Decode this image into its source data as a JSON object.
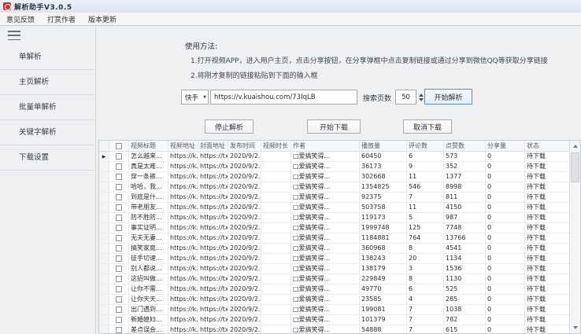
{
  "window": {
    "title": "解析助手V3.0.5"
  },
  "menu": {
    "items": [
      {
        "label": "意见反馈"
      },
      {
        "label": "打赏作者"
      },
      {
        "label": "版本更新"
      }
    ]
  },
  "sidebar": {
    "items": [
      {
        "label": "单解析"
      },
      {
        "label": "主页解析"
      },
      {
        "label": "批量单解析"
      },
      {
        "label": "关键字解析"
      },
      {
        "label": "下载设置"
      }
    ]
  },
  "instructions": {
    "heading": "使用方法:",
    "lines": [
      "1.打开视频APP，进入用户主页，点击分享按钮，在分享弹框中点击复制链接或通过分享到微信QQ等获取分享链接",
      "2.将刚才复制的链接粘贴到下面的输入框"
    ]
  },
  "parse_bar": {
    "platform_selected": "快手",
    "url_value": "https://v.kuaishou.com/73IqLB",
    "pages_label": "搜索页数",
    "pages_value": "50",
    "start_parse_label": "开始解析"
  },
  "download_bar": {
    "stop_parse_label": "停止解析",
    "start_download_label": "开始下载",
    "cancel_download_label": "取消下载"
  },
  "table": {
    "columns": [
      "视频标题",
      "视频地址",
      "封面地址",
      "发布时间",
      "视频时长",
      "作者",
      "播放量",
      "评论数",
      "点赞数",
      "分享量",
      "状态"
    ],
    "rows": [
      {
        "title": "怎么越来...",
        "video_url": "https://k...",
        "cover_url": "https://tx...",
        "publish_date": "2020/9/2...",
        "duration": "",
        "author": "□爱搞笑得...",
        "plays": "60450",
        "comments": "6",
        "likes": "573",
        "shares": "0",
        "status": "待下载"
      },
      {
        "title": "真是太难...",
        "video_url": "https://k...",
        "cover_url": "https://tx...",
        "publish_date": "2020/9/2...",
        "duration": "",
        "author": "□爱搞笑得...",
        "plays": "36173",
        "comments": "9",
        "likes": "352",
        "shares": "0",
        "status": "待下载"
      },
      {
        "title": "穿一条裤...",
        "video_url": "https://k...",
        "cover_url": "https://tx...",
        "publish_date": "2020/9/2...",
        "duration": "",
        "author": "□爱搞笑得...",
        "plays": "302668",
        "comments": "11",
        "likes": "1377",
        "shares": "0",
        "status": "待下载"
      },
      {
        "title": "哈哈，我...",
        "video_url": "https://k...",
        "cover_url": "https://tx...",
        "publish_date": "2020/9/2...",
        "duration": "",
        "author": "□爱搞笑得...",
        "plays": "1354825",
        "comments": "546",
        "likes": "8998",
        "shares": "0",
        "status": "待下载"
      },
      {
        "title": "到底是什...",
        "video_url": "https://k...",
        "cover_url": "https://tx...",
        "publish_date": "2020/9/2...",
        "duration": "",
        "author": "□爱搞笑得...",
        "plays": "92375",
        "comments": "7",
        "likes": "811",
        "shares": "0",
        "status": "待下载"
      },
      {
        "title": "带老朋友...",
        "video_url": "https://k...",
        "cover_url": "https://tx...",
        "publish_date": "2020/9/2...",
        "duration": "",
        "author": "□爱搞笑得...",
        "plays": "503758",
        "comments": "11",
        "likes": "4150",
        "shares": "0",
        "status": "待下载"
      },
      {
        "title": "防不胜防...",
        "video_url": "https://k...",
        "cover_url": "https://tx...",
        "publish_date": "2020/9/2...",
        "duration": "",
        "author": "□爱搞笑得...",
        "plays": "119173",
        "comments": "5",
        "likes": "987",
        "shares": "0",
        "status": "待下载"
      },
      {
        "title": "事实证明...",
        "video_url": "https://k...",
        "cover_url": "https://tx...",
        "publish_date": "2020/9/2...",
        "duration": "",
        "author": "□爱搞笑得...",
        "plays": "1999748",
        "comments": "125",
        "likes": "7748",
        "shares": "0",
        "status": "待下载"
      },
      {
        "title": "无夫无妻...",
        "video_url": "https://k...",
        "cover_url": "https://tx...",
        "publish_date": "2020/9/2...",
        "duration": "",
        "author": "□爱搞笑得...",
        "plays": "1184881",
        "comments": "764",
        "likes": "13766",
        "shares": "0",
        "status": "待下载"
      },
      {
        "title": "搞笑家庭...",
        "video_url": "https://k...",
        "cover_url": "https://tx...",
        "publish_date": "2020/9/2...",
        "duration": "",
        "author": "□爱搞笑得...",
        "plays": "360968",
        "comments": "8",
        "likes": "4541",
        "shares": "0",
        "status": "待下载"
      },
      {
        "title": "徒手切速...",
        "video_url": "https://k...",
        "cover_url": "https://tx...",
        "publish_date": "2020/9/2...",
        "duration": "",
        "author": "□爱搞笑得...",
        "plays": "138243",
        "comments": "20",
        "likes": "1134",
        "shares": "0",
        "status": "待下载"
      },
      {
        "title": "别人都说...",
        "video_url": "https://k...",
        "cover_url": "https://tx...",
        "publish_date": "2020/9/2...",
        "duration": "",
        "author": "□爱搞笑得...",
        "plays": "138179",
        "comments": "3",
        "likes": "1536",
        "shares": "0",
        "status": "待下载"
      },
      {
        "title": "这招叫做...",
        "video_url": "https://k...",
        "cover_url": "https://tx...",
        "publish_date": "2020/9/2...",
        "duration": "",
        "author": "□爱搞笑得...",
        "plays": "229849",
        "comments": "8",
        "likes": "1130",
        "shares": "0",
        "status": "待下载"
      },
      {
        "title": "让你不需...",
        "video_url": "https://k...",
        "cover_url": "https://tx...",
        "publish_date": "2020/9/2...",
        "duration": "",
        "author": "□爱搞笑得...",
        "plays": "49770",
        "comments": "6",
        "likes": "525",
        "shares": "0",
        "status": "待下载"
      },
      {
        "title": "让你天天...",
        "video_url": "https://k...",
        "cover_url": "https://tx...",
        "publish_date": "2020/9/2...",
        "duration": "",
        "author": "□爱搞笑得...",
        "plays": "23585",
        "comments": "4",
        "likes": "285",
        "shares": "0",
        "status": "待下载"
      },
      {
        "title": "出门遇到...",
        "video_url": "https://k...",
        "cover_url": "https://tx...",
        "publish_date": "2020/9/2...",
        "duration": "",
        "author": "□爱搞笑得...",
        "plays": "199081",
        "comments": "7",
        "likes": "1038",
        "shares": "0",
        "status": "待下载"
      },
      {
        "title": "新婚媳妇...",
        "video_url": "https://k...",
        "cover_url": "https://tx...",
        "publish_date": "2020/9/2...",
        "duration": "",
        "author": "□爱搞笑得...",
        "plays": "101379",
        "comments": "7",
        "likes": "782",
        "shares": "0",
        "status": "待下载"
      },
      {
        "title": "差点误会...",
        "video_url": "https://k...",
        "cover_url": "https://tx...",
        "publish_date": "2020/9/2...",
        "duration": "",
        "author": "□爱搞笑得...",
        "plays": "54888",
        "comments": "7",
        "likes": "615",
        "shares": "0",
        "status": "待下载"
      }
    ]
  },
  "colors": {
    "app_icon": "#d9272e",
    "focus_button_border": "#4f93d6"
  }
}
